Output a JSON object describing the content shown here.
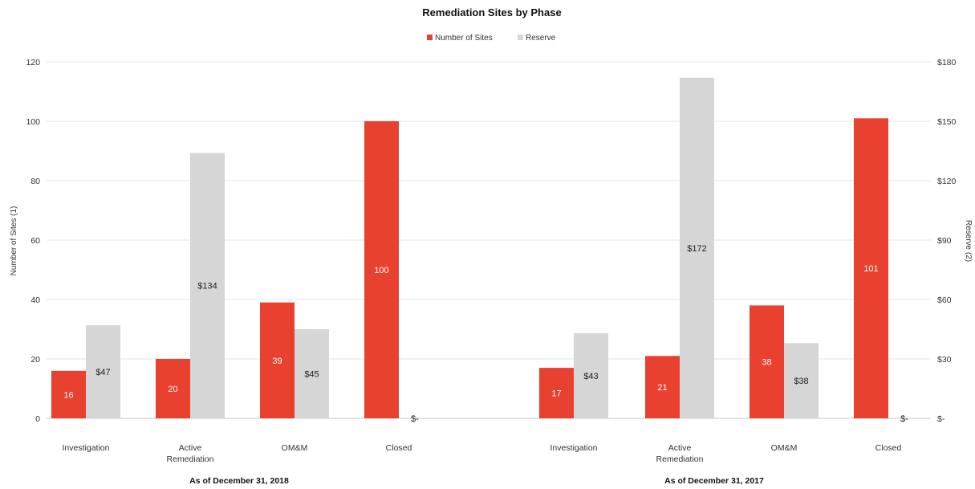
{
  "chart_data": {
    "type": "bar",
    "title": "Remediation Sites by Phase",
    "legend": {
      "position": "top-center",
      "items": [
        {
          "label": "Number of Sites",
          "color": "#e8412f"
        },
        {
          "label": "Reserve",
          "color": "#d6d6d6"
        }
      ]
    },
    "y_left": {
      "label": "Number of Sites (1)",
      "range": [
        0,
        120
      ],
      "ticks": [
        "0",
        "20",
        "40",
        "60",
        "80",
        "100",
        "120"
      ]
    },
    "y_right": {
      "label": "Reserve (2)",
      "range": [
        0,
        180
      ],
      "ticks": [
        "$-",
        "$30",
        "$60",
        "$90",
        "$120",
        "$150",
        "$180"
      ]
    },
    "grid": true,
    "groups": [
      {
        "label": "As of December 31, 2018",
        "categories": [
          {
            "name": [
              "Investigation"
            ],
            "sites": 16,
            "reserve": 47,
            "sites_label": "16",
            "reserve_label": "$47"
          },
          {
            "name": [
              "Active",
              "Remediation"
            ],
            "sites": 20,
            "reserve": 134,
            "sites_label": "20",
            "reserve_label": "$134"
          },
          {
            "name": [
              "OM&M"
            ],
            "sites": 39,
            "reserve": 45,
            "sites_label": "39",
            "reserve_label": "$45"
          },
          {
            "name": [
              "Closed"
            ],
            "sites": 100,
            "reserve": 0,
            "sites_label": "100",
            "reserve_label": "$-"
          }
        ]
      },
      {
        "label": "As of December 31, 2017",
        "categories": [
          {
            "name": [
              "Investigation"
            ],
            "sites": 17,
            "reserve": 43,
            "sites_label": "17",
            "reserve_label": "$43"
          },
          {
            "name": [
              "Active",
              "Remediation"
            ],
            "sites": 21,
            "reserve": 172,
            "sites_label": "21",
            "reserve_label": "$172"
          },
          {
            "name": [
              "OM&M"
            ],
            "sites": 38,
            "reserve": 38,
            "sites_label": "38",
            "reserve_label": "$38"
          },
          {
            "name": [
              "Closed"
            ],
            "sites": 101,
            "reserve": 0,
            "sites_label": "101",
            "reserve_label": "$-"
          }
        ]
      }
    ]
  }
}
